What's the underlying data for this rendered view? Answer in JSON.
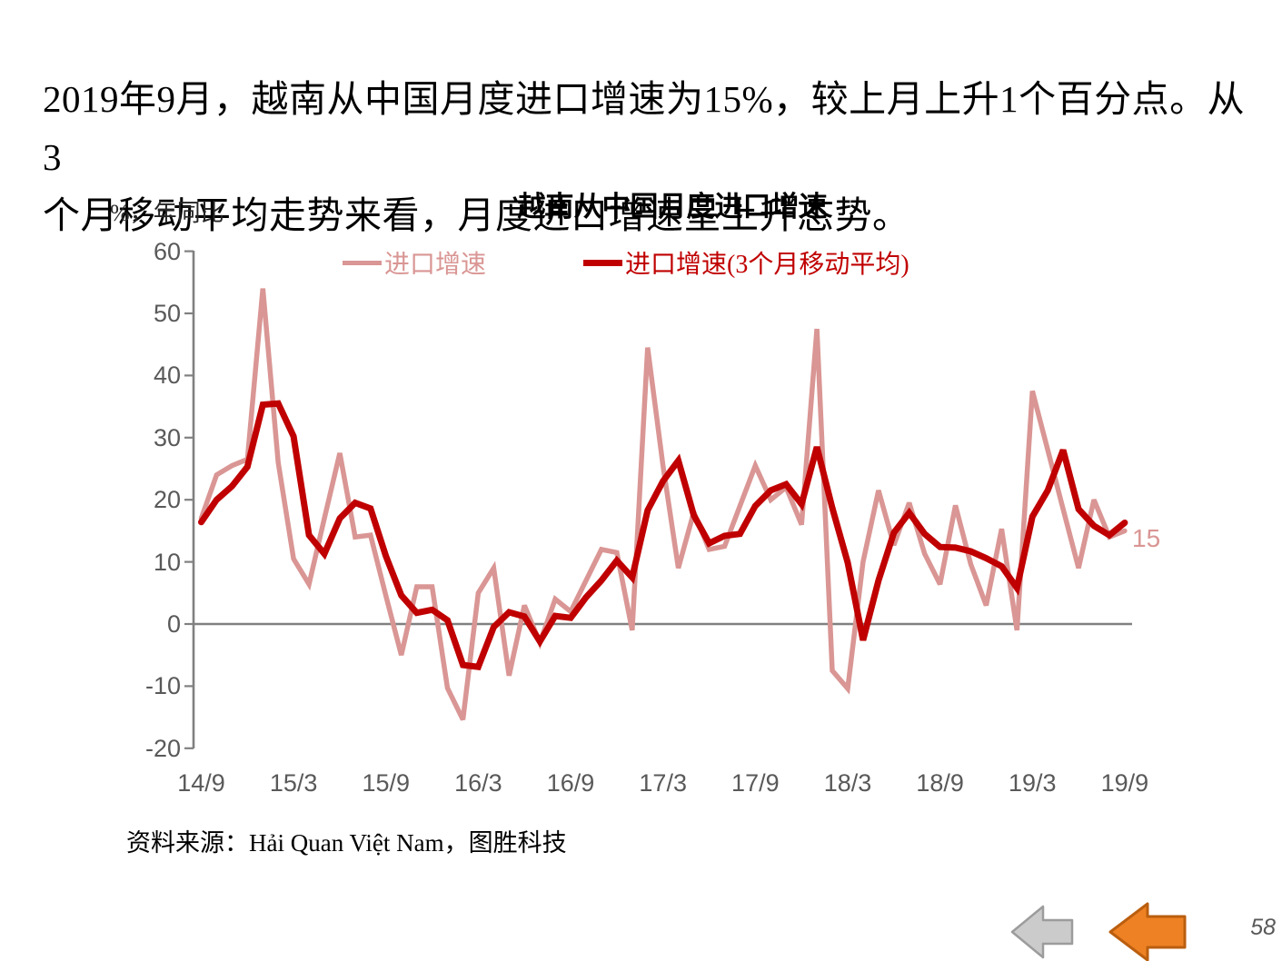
{
  "slide": {
    "headline_lines": [
      "2019年9月，越南从中国月度进口增速为15%，较上月上升1个百分点。从3",
      "个月移动平均走势来看，月度进口增速呈上升态势。"
    ],
    "source": "资料来源：Hải Quan Việt Nam，图胜科技",
    "page_number": "58",
    "nav": {
      "back_arrow_fill": "#CBCBCB",
      "back_arrow_stroke": "#9C9C9C",
      "forward_arrow_fill": "#EE8123",
      "forward_arrow_stroke": "#BA5E0F"
    }
  },
  "chart_data": {
    "type": "line",
    "title": "越南从中国月度进口增速",
    "y_axis_unit": "%，年同比",
    "ylabel": "%, 年同比",
    "xlabel": "",
    "ylim": [
      -20,
      60
    ],
    "y_ticks": [
      60,
      50,
      40,
      30,
      20,
      10,
      0,
      -10,
      -20
    ],
    "x_tick_labels": [
      "14/9",
      "15/3",
      "15/9",
      "16/3",
      "16/9",
      "17/3",
      "17/9",
      "18/3",
      "18/9",
      "19/3",
      "19/9"
    ],
    "grid": "zero-line-only",
    "legend_position": "top",
    "axis_color": "#808080",
    "tick_label_color": "#595959",
    "end_label": "15",
    "x": [
      "14/9",
      "14/10",
      "14/11",
      "14/12",
      "15/1",
      "15/2",
      "15/3",
      "15/4",
      "15/5",
      "15/6",
      "15/7",
      "15/8",
      "15/9",
      "15/10",
      "15/11",
      "15/12",
      "16/1",
      "16/2",
      "16/3",
      "16/4",
      "16/5",
      "16/6",
      "16/7",
      "16/8",
      "16/9",
      "16/10",
      "16/11",
      "16/12",
      "17/1",
      "17/2",
      "17/3",
      "17/4",
      "17/5",
      "17/6",
      "17/7",
      "17/8",
      "17/9",
      "17/10",
      "17/11",
      "17/12",
      "18/1",
      "18/2",
      "18/3",
      "18/4",
      "18/5",
      "18/6",
      "18/7",
      "18/8",
      "18/9",
      "18/10",
      "18/11",
      "18/12",
      "19/1",
      "19/2",
      "19/3",
      "19/4",
      "19/5",
      "19/6",
      "19/7",
      "19/8",
      "19/9"
    ],
    "series": [
      {
        "name": "进口增速",
        "color": "#D99694",
        "width": 5.5,
        "values": [
          17,
          24,
          25.5,
          26.5,
          54,
          26,
          10.5,
          6.4,
          17,
          27.5,
          14,
          14.3,
          4.5,
          -5,
          6,
          6,
          -10.3,
          -15.4,
          5,
          9,
          -8.3,
          3,
          -3,
          4,
          2,
          7,
          12,
          11.5,
          -1,
          44.5,
          25.5,
          9,
          18,
          12,
          12.5,
          19,
          25.5,
          20,
          22,
          16,
          47.5,
          -7.5,
          -10.4,
          10,
          21.5,
          12.7,
          19.5,
          11.3,
          6.4,
          19.1,
          9.6,
          3,
          15.3,
          -1,
          37.5,
          28,
          18.5,
          9,
          20,
          14,
          15
        ]
      },
      {
        "name": "进口增速(3个月移动平均)",
        "color": "#C00000",
        "width": 7,
        "values": [
          16.4,
          20,
          22.2,
          25.3,
          35.3,
          35.5,
          30.2,
          14.3,
          11.3,
          17,
          19.5,
          18.6,
          10.9,
          4.6,
          1.8,
          2.3,
          0.6,
          -6.6,
          -6.9,
          -0.5,
          1.9,
          1.2,
          -2.8,
          1.3,
          1,
          4.3,
          7,
          10.2,
          7.5,
          18.3,
          23,
          26.3,
          17.5,
          13,
          14.2,
          14.5,
          19,
          21.5,
          22.5,
          19.3,
          28.5,
          18.7,
          9.9,
          -2.6,
          7,
          14.7,
          17.9,
          14.5,
          12.4,
          12.3,
          11.7,
          10.6,
          9.3,
          5.8,
          17.3,
          21.5,
          28,
          18.5,
          15.8,
          14.3,
          16.3
        ]
      }
    ]
  }
}
